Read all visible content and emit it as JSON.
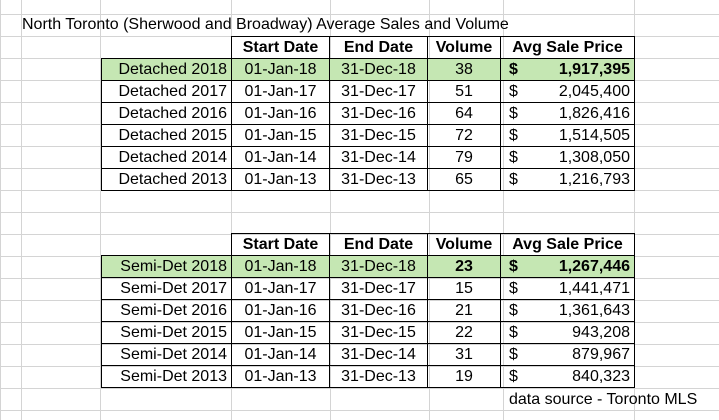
{
  "title": "North Toronto (Sherwood and Broadway) Average Sales and Volume",
  "headers": [
    "Start Date",
    "End Date",
    "Volume",
    "Avg Sale Price"
  ],
  "detached": [
    {
      "label": "Detached 2018",
      "start": "01-Jan-18",
      "end": "31-Dec-18",
      "volume": "38",
      "currency": "$",
      "price": "1,917,395"
    },
    {
      "label": "Detached 2017",
      "start": "01-Jan-17",
      "end": "31-Dec-17",
      "volume": "51",
      "currency": "$",
      "price": "2,045,400"
    },
    {
      "label": "Detached 2016",
      "start": "01-Jan-16",
      "end": "31-Dec-16",
      "volume": "64",
      "currency": "$",
      "price": "1,826,416"
    },
    {
      "label": "Detached 2015",
      "start": "01-Jan-15",
      "end": "31-Dec-15",
      "volume": "72",
      "currency": "$",
      "price": "1,514,505"
    },
    {
      "label": "Detached 2014",
      "start": "01-Jan-14",
      "end": "31-Dec-14",
      "volume": "79",
      "currency": "$",
      "price": "1,308,050"
    },
    {
      "label": "Detached 2013",
      "start": "01-Jan-13",
      "end": "31-Dec-13",
      "volume": "65",
      "currency": "$",
      "price": "1,216,793"
    }
  ],
  "semidet": [
    {
      "label": "Semi-Det 2018",
      "start": "01-Jan-18",
      "end": "31-Dec-18",
      "volume": "23",
      "currency": "$",
      "price": "1,267,446"
    },
    {
      "label": "Semi-Det 2017",
      "start": "01-Jan-17",
      "end": "31-Dec-17",
      "volume": "15",
      "currency": "$",
      "price": "1,441,471"
    },
    {
      "label": "Semi-Det 2016",
      "start": "01-Jan-16",
      "end": "31-Dec-16",
      "volume": "21",
      "currency": "$",
      "price": "1,361,643"
    },
    {
      "label": "Semi-Det 2015",
      "start": "01-Jan-15",
      "end": "31-Dec-15",
      "volume": "22",
      "currency": "$",
      "price": "943,208"
    },
    {
      "label": "Semi-Det 2014",
      "start": "01-Jan-14",
      "end": "31-Dec-14",
      "volume": "31",
      "currency": "$",
      "price": "879,967"
    },
    {
      "label": "Semi-Det 2013",
      "start": "01-Jan-13",
      "end": "31-Dec-13",
      "volume": "19",
      "currency": "$",
      "price": "840,323"
    }
  ],
  "highlight_color": "#c5e7b3",
  "grid_color": "#d4d4d4",
  "source": "data source - Toronto MLS"
}
